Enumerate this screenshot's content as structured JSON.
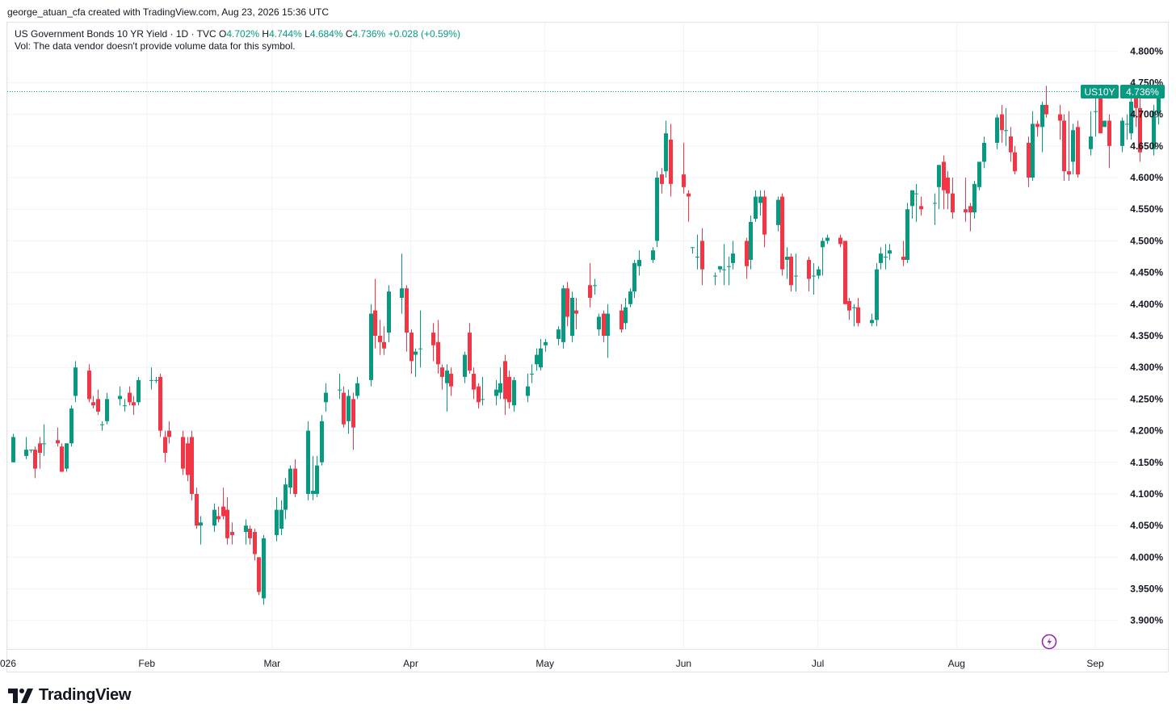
{
  "attribution": "george_atuan_cfa created with TradingView.com, Aug 23, 2026 15:36 UTC",
  "legend": {
    "symbol": "US Government Bonds 10 YR Yield · 1D · TVC",
    "o_label": "O",
    "o_value": "4.702%",
    "h_label": "H",
    "h_value": "4.744%",
    "l_label": "L",
    "l_value": "4.684%",
    "c_label": "C",
    "c_value": "4.736%",
    "change": "+0.028 (+0.59%)",
    "volume_note": "Vol: The data vendor doesn't provide volume data for this symbol."
  },
  "price_tag": {
    "symbol": "US10Y",
    "value": "4.736%"
  },
  "brand": {
    "name": "TradingView",
    "logo_icon": "tradingview-logo-icon"
  },
  "colors": {
    "up": "#089981",
    "down": "#f23645",
    "grid": "#f0f3fa",
    "axis_text": "#131722",
    "last_price": "#089981",
    "lightning": "#9c27b0"
  },
  "chart_data": {
    "type": "candlestick",
    "x_axis_labels": [
      {
        "label": "026",
        "date": "2026-01-01"
      },
      {
        "label": "Feb",
        "date": "2026-02-01"
      },
      {
        "label": "Mar",
        "date": "2026-03-01"
      },
      {
        "label": "Apr",
        "date": "2026-04-01"
      },
      {
        "label": "May",
        "date": "2026-05-01"
      },
      {
        "label": "Jun",
        "date": "2026-06-01"
      },
      {
        "label": "Jul",
        "date": "2026-07-01"
      },
      {
        "label": "Aug",
        "date": "2026-08-01"
      },
      {
        "label": "Sep",
        "date": "2026-09-01"
      }
    ],
    "y_ticks": [
      "4.800%",
      "4.750%",
      "4.700%",
      "4.650%",
      "4.600%",
      "4.550%",
      "4.500%",
      "4.450%",
      "4.400%",
      "4.350%",
      "4.300%",
      "4.250%",
      "4.200%",
      "4.150%",
      "4.100%",
      "4.050%",
      "4.000%",
      "3.950%",
      "3.900%"
    ],
    "ylim": [
      3.855,
      4.845
    ],
    "last_price": 4.736,
    "grid": true,
    "series": [
      {
        "o": 4.15,
        "h": 4.195,
        "l": 4.15,
        "c": 4.19
      },
      {
        "o": 4.16,
        "h": 4.19,
        "l": 4.155,
        "c": 4.17
      },
      {
        "o": 4.17,
        "h": 4.17,
        "l": 4.165,
        "c": 4.17
      },
      {
        "o": 4.17,
        "h": 4.175,
        "l": 4.125,
        "c": 4.14
      },
      {
        "o": 4.18,
        "h": 4.19,
        "l": 4.14,
        "c": 4.165
      },
      {
        "o": 4.18,
        "h": 4.21,
        "l": 4.16,
        "c": 4.18
      },
      {
        "o": 4.185,
        "h": 4.205,
        "l": 4.175,
        "c": 4.18
      },
      {
        "o": 4.175,
        "h": 4.18,
        "l": 4.135,
        "c": 4.135
      },
      {
        "o": 4.14,
        "h": 4.18,
        "l": 4.135,
        "c": 4.18
      },
      {
        "o": 4.18,
        "h": 4.24,
        "l": 4.175,
        "c": 4.235
      },
      {
        "o": 4.255,
        "h": 4.31,
        "l": 4.245,
        "c": 4.3
      },
      {
        "o": 4.295,
        "h": 4.305,
        "l": 4.245,
        "c": 4.25
      },
      {
        "o": 4.245,
        "h": 4.255,
        "l": 4.235,
        "c": 4.24
      },
      {
        "o": 4.25,
        "h": 4.265,
        "l": 4.225,
        "c": 4.23
      },
      {
        "o": 4.21,
        "h": 4.215,
        "l": 4.2,
        "c": 4.21
      },
      {
        "o": 4.215,
        "h": 4.26,
        "l": 4.21,
        "c": 4.25
      },
      {
        "o": 4.25,
        "h": 4.27,
        "l": 4.24,
        "c": 4.255
      },
      {
        "o": 4.24,
        "h": 4.25,
        "l": 4.23,
        "c": 4.24
      },
      {
        "o": 4.26,
        "h": 4.27,
        "l": 4.24,
        "c": 4.245
      },
      {
        "o": 4.245,
        "h": 4.255,
        "l": 4.225,
        "c": 4.24
      },
      {
        "o": 4.245,
        "h": 4.285,
        "l": 4.24,
        "c": 4.28
      },
      {
        "o": 4.28,
        "h": 4.3,
        "l": 4.265,
        "c": 4.28
      },
      {
        "o": 4.28,
        "h": 4.285,
        "l": 4.275,
        "c": 4.28
      },
      {
        "o": 4.285,
        "h": 4.29,
        "l": 4.19,
        "c": 4.2
      },
      {
        "o": 4.19,
        "h": 4.2,
        "l": 4.15,
        "c": 4.165
      },
      {
        "o": 4.2,
        "h": 4.215,
        "l": 4.18,
        "c": 4.19
      },
      {
        "o": 4.19,
        "h": 4.2,
        "l": 4.13,
        "c": 4.14
      },
      {
        "o": 4.18,
        "h": 4.19,
        "l": 4.12,
        "c": 4.13
      },
      {
        "o": 4.19,
        "h": 4.2,
        "l": 4.09,
        "c": 4.1
      },
      {
        "o": 4.1,
        "h": 4.11,
        "l": 4.045,
        "c": 4.05
      },
      {
        "o": 4.05,
        "h": 4.065,
        "l": 4.02,
        "c": 4.055
      },
      {
        "o": 4.05,
        "h": 4.085,
        "l": 4.04,
        "c": 4.075
      },
      {
        "o": 4.065,
        "h": 4.08,
        "l": 4.055,
        "c": 4.06
      },
      {
        "o": 4.08,
        "h": 4.11,
        "l": 4.06,
        "c": 4.065
      },
      {
        "o": 4.075,
        "h": 4.095,
        "l": 4.02,
        "c": 4.03
      },
      {
        "o": 4.04,
        "h": 4.055,
        "l": 4.02,
        "c": 4.035
      },
      {
        "o": 4.04,
        "h": 4.06,
        "l": 4.02,
        "c": 4.05
      },
      {
        "o": 4.045,
        "h": 4.05,
        "l": 4.02,
        "c": 4.03
      },
      {
        "o": 4.04,
        "h": 4.045,
        "l": 3.995,
        "c": 4.005
      },
      {
        "o": 4.0,
        "h": 4.0,
        "l": 3.94,
        "c": 3.945
      },
      {
        "o": 3.935,
        "h": 4.035,
        "l": 3.925,
        "c": 4.03
      },
      {
        "o": 4.035,
        "h": 4.095,
        "l": 4.025,
        "c": 4.075
      },
      {
        "o": 4.045,
        "h": 4.09,
        "l": 4.035,
        "c": 4.075
      },
      {
        "o": 4.075,
        "h": 4.125,
        "l": 4.06,
        "c": 4.115
      },
      {
        "o": 4.11,
        "h": 4.145,
        "l": 4.1,
        "c": 4.14
      },
      {
        "o": 4.14,
        "h": 4.155,
        "l": 4.095,
        "c": 4.1
      },
      {
        "o": 4.1,
        "h": 4.215,
        "l": 4.09,
        "c": 4.2
      },
      {
        "o": 4.1,
        "h": 4.16,
        "l": 4.09,
        "c": 4.105
      },
      {
        "o": 4.1,
        "h": 4.16,
        "l": 4.095,
        "c": 4.145
      },
      {
        "o": 4.15,
        "h": 4.225,
        "l": 4.145,
        "c": 4.215
      },
      {
        "o": 4.245,
        "h": 4.275,
        "l": 4.23,
        "c": 4.26
      },
      {
        "o": 4.265,
        "h": 4.29,
        "l": 4.25,
        "c": 4.265
      },
      {
        "o": 4.26,
        "h": 4.27,
        "l": 4.205,
        "c": 4.21
      },
      {
        "o": 4.215,
        "h": 4.265,
        "l": 4.195,
        "c": 4.255
      },
      {
        "o": 4.25,
        "h": 4.26,
        "l": 4.17,
        "c": 4.205
      },
      {
        "o": 4.255,
        "h": 4.285,
        "l": 4.25,
        "c": 4.275
      },
      {
        "o": 4.28,
        "h": 4.4,
        "l": 4.27,
        "c": 4.385
      },
      {
        "o": 4.39,
        "h": 4.44,
        "l": 4.33,
        "c": 4.35
      },
      {
        "o": 4.35,
        "h": 4.375,
        "l": 4.32,
        "c": 4.34
      },
      {
        "o": 4.34,
        "h": 4.365,
        "l": 4.32,
        "c": 4.33
      },
      {
        "o": 4.355,
        "h": 4.43,
        "l": 4.34,
        "c": 4.42
      },
      {
        "o": 4.41,
        "h": 4.48,
        "l": 4.385,
        "c": 4.425
      },
      {
        "o": 4.425,
        "h": 4.43,
        "l": 4.325,
        "c": 4.355
      },
      {
        "o": 4.355,
        "h": 4.36,
        "l": 4.29,
        "c": 4.31
      },
      {
        "o": 4.32,
        "h": 4.33,
        "l": 4.285,
        "c": 4.325
      },
      {
        "o": 4.33,
        "h": 4.39,
        "l": 4.3,
        "c": 4.33
      },
      {
        "o": 4.355,
        "h": 4.37,
        "l": 4.31,
        "c": 4.335
      },
      {
        "o": 4.34,
        "h": 4.375,
        "l": 4.29,
        "c": 4.305
      },
      {
        "o": 4.3,
        "h": 4.305,
        "l": 4.265,
        "c": 4.285
      },
      {
        "o": 4.275,
        "h": 4.305,
        "l": 4.23,
        "c": 4.295
      },
      {
        "o": 4.29,
        "h": 4.3,
        "l": 4.255,
        "c": 4.27
      },
      {
        "o": 4.285,
        "h": 4.325,
        "l": 4.275,
        "c": 4.32
      },
      {
        "o": 4.355,
        "h": 4.37,
        "l": 4.29,
        "c": 4.295
      },
      {
        "o": 4.29,
        "h": 4.3,
        "l": 4.25,
        "c": 4.265
      },
      {
        "o": 4.27,
        "h": 4.275,
        "l": 4.235,
        "c": 4.245
      },
      {
        "o": 4.25,
        "h": 4.285,
        "l": 4.24,
        "c": 4.25
      },
      {
        "o": 4.255,
        "h": 4.28,
        "l": 4.24,
        "c": 4.265
      },
      {
        "o": 4.26,
        "h": 4.3,
        "l": 4.25,
        "c": 4.275
      },
      {
        "o": 4.31,
        "h": 4.32,
        "l": 4.225,
        "c": 4.25
      },
      {
        "o": 4.285,
        "h": 4.295,
        "l": 4.235,
        "c": 4.245
      },
      {
        "o": 4.24,
        "h": 4.285,
        "l": 4.23,
        "c": 4.28
      },
      {
        "o": 4.255,
        "h": 4.29,
        "l": 4.245,
        "c": 4.27
      },
      {
        "o": 4.29,
        "h": 4.305,
        "l": 4.275,
        "c": 4.29
      },
      {
        "o": 4.305,
        "h": 4.33,
        "l": 4.295,
        "c": 4.32
      },
      {
        "o": 4.3,
        "h": 4.345,
        "l": 4.295,
        "c": 4.33
      },
      {
        "o": 4.335,
        "h": 4.345,
        "l": 4.325,
        "c": 4.34
      },
      {
        "o": 4.345,
        "h": 4.365,
        "l": 4.335,
        "c": 4.36
      },
      {
        "o": 4.34,
        "h": 4.43,
        "l": 4.33,
        "c": 4.425
      },
      {
        "o": 4.425,
        "h": 4.435,
        "l": 4.365,
        "c": 4.38
      },
      {
        "o": 4.35,
        "h": 4.42,
        "l": 4.34,
        "c": 4.41
      },
      {
        "o": 4.39,
        "h": 4.41,
        "l": 4.36,
        "c": 4.385
      },
      {
        "o": 4.43,
        "h": 4.465,
        "l": 4.395,
        "c": 4.41
      },
      {
        "o": 4.43,
        "h": 4.44,
        "l": 4.415,
        "c": 4.43
      },
      {
        "o": 4.36,
        "h": 4.385,
        "l": 4.35,
        "c": 4.38
      },
      {
        "o": 4.385,
        "h": 4.39,
        "l": 4.34,
        "c": 4.35
      },
      {
        "o": 4.35,
        "h": 4.4,
        "l": 4.315,
        "c": 4.385
      },
      {
        "o": 4.39,
        "h": 4.4,
        "l": 4.355,
        "c": 4.36
      },
      {
        "o": 4.37,
        "h": 4.41,
        "l": 4.36,
        "c": 4.395
      },
      {
        "o": 4.4,
        "h": 4.425,
        "l": 4.395,
        "c": 4.42
      },
      {
        "o": 4.42,
        "h": 4.47,
        "l": 4.41,
        "c": 4.465
      },
      {
        "o": 4.46,
        "h": 4.485,
        "l": 4.445,
        "c": 4.47
      },
      {
        "o": 4.47,
        "h": 4.49,
        "l": 4.465,
        "c": 4.485
      },
      {
        "o": 4.5,
        "h": 4.61,
        "l": 4.49,
        "c": 4.6
      },
      {
        "o": 4.605,
        "h": 4.615,
        "l": 4.575,
        "c": 4.59
      },
      {
        "o": 4.61,
        "h": 4.69,
        "l": 4.6,
        "c": 4.67
      },
      {
        "o": 4.66,
        "h": 4.685,
        "l": 4.57,
        "c": 4.59
      },
      {
        "o": 4.605,
        "h": 4.655,
        "l": 4.575,
        "c": 4.585
      },
      {
        "o": 4.575,
        "h": 4.58,
        "l": 4.53,
        "c": 4.57
      },
      {
        "o": 4.49,
        "h": 4.49,
        "l": 4.48,
        "c": 4.49
      },
      {
        "o": 4.475,
        "h": 4.51,
        "l": 4.455,
        "c": 4.475
      },
      {
        "o": 4.5,
        "h": 4.52,
        "l": 4.43,
        "c": 4.455
      },
      {
        "o": 4.445,
        "h": 4.45,
        "l": 4.43,
        "c": 4.445
      },
      {
        "o": 4.455,
        "h": 4.46,
        "l": 4.45,
        "c": 4.46
      },
      {
        "o": 4.455,
        "h": 4.495,
        "l": 4.43,
        "c": 4.455
      },
      {
        "o": 4.46,
        "h": 4.475,
        "l": 4.43,
        "c": 4.46
      },
      {
        "o": 4.465,
        "h": 4.5,
        "l": 4.455,
        "c": 4.48
      },
      {
        "o": 4.5,
        "h": 4.505,
        "l": 4.44,
        "c": 4.46
      },
      {
        "o": 4.47,
        "h": 4.54,
        "l": 4.455,
        "c": 4.53
      },
      {
        "o": 4.535,
        "h": 4.58,
        "l": 4.53,
        "c": 4.57
      },
      {
        "o": 4.56,
        "h": 4.58,
        "l": 4.54,
        "c": 4.57
      },
      {
        "o": 4.57,
        "h": 4.58,
        "l": 4.49,
        "c": 4.51
      },
      {
        "o": 4.525,
        "h": 4.57,
        "l": 4.515,
        "c": 4.565
      },
      {
        "o": 4.57,
        "h": 4.575,
        "l": 4.445,
        "c": 4.455
      },
      {
        "o": 4.47,
        "h": 4.49,
        "l": 4.44,
        "c": 4.475
      },
      {
        "o": 4.475,
        "h": 4.48,
        "l": 4.42,
        "c": 4.43
      },
      {
        "o": 4.445,
        "h": 4.48,
        "l": 4.42,
        "c": 4.445
      },
      {
        "o": 4.47,
        "h": 4.475,
        "l": 4.42,
        "c": 4.44
      },
      {
        "o": 4.445,
        "h": 4.465,
        "l": 4.415,
        "c": 4.445
      },
      {
        "o": 4.445,
        "h": 4.46,
        "l": 4.44,
        "c": 4.455
      },
      {
        "o": 4.49,
        "h": 4.505,
        "l": 4.445,
        "c": 4.5
      },
      {
        "o": 4.5,
        "h": 4.51,
        "l": 4.495,
        "c": 4.505
      },
      {
        "o": 4.505,
        "h": 4.51,
        "l": 4.49,
        "c": 4.495
      },
      {
        "o": 4.5,
        "h": 4.5,
        "l": 4.4,
        "c": 4.4
      },
      {
        "o": 4.405,
        "h": 4.41,
        "l": 4.375,
        "c": 4.39
      },
      {
        "o": 4.395,
        "h": 4.4,
        "l": 4.365,
        "c": 4.395
      },
      {
        "o": 4.395,
        "h": 4.41,
        "l": 4.365,
        "c": 4.37
      },
      {
        "o": 4.37,
        "h": 4.385,
        "l": 4.365,
        "c": 4.375
      },
      {
        "o": 4.375,
        "h": 4.465,
        "l": 4.365,
        "c": 4.455
      },
      {
        "o": 4.465,
        "h": 4.49,
        "l": 4.455,
        "c": 4.48
      },
      {
        "o": 4.475,
        "h": 4.495,
        "l": 4.455,
        "c": 4.475
      },
      {
        "o": 4.48,
        "h": 4.495,
        "l": 4.47,
        "c": 4.485
      },
      {
        "o": 4.475,
        "h": 4.5,
        "l": 4.46,
        "c": 4.47
      },
      {
        "o": 4.47,
        "h": 4.56,
        "l": 4.465,
        "c": 4.55
      },
      {
        "o": 4.555,
        "h": 4.58,
        "l": 4.535,
        "c": 4.58
      },
      {
        "o": 4.575,
        "h": 4.59,
        "l": 4.53,
        "c": 4.575
      },
      {
        "o": 4.555,
        "h": 4.57,
        "l": 4.54,
        "c": 4.55
      },
      {
        "o": 4.56,
        "h": 4.575,
        "l": 4.525,
        "c": 4.56
      },
      {
        "o": 4.585,
        "h": 4.62,
        "l": 4.55,
        "c": 4.62
      },
      {
        "o": 4.625,
        "h": 4.635,
        "l": 4.55,
        "c": 4.58
      },
      {
        "o": 4.6,
        "h": 4.61,
        "l": 4.55,
        "c": 4.575
      },
      {
        "o": 4.575,
        "h": 4.6,
        "l": 4.535,
        "c": 4.545
      },
      {
        "o": 4.55,
        "h": 4.6,
        "l": 4.53,
        "c": 4.545
      },
      {
        "o": 4.555,
        "h": 4.56,
        "l": 4.515,
        "c": 4.545
      },
      {
        "o": 4.545,
        "h": 4.595,
        "l": 4.535,
        "c": 4.59
      },
      {
        "o": 4.585,
        "h": 4.625,
        "l": 4.58,
        "c": 4.625
      },
      {
        "o": 4.625,
        "h": 4.665,
        "l": 4.615,
        "c": 4.655
      },
      {
        "o": 4.655,
        "h": 4.7,
        "l": 4.645,
        "c": 4.695
      },
      {
        "o": 4.7,
        "h": 4.715,
        "l": 4.655,
        "c": 4.675
      },
      {
        "o": 4.675,
        "h": 4.71,
        "l": 4.65,
        "c": 4.675
      },
      {
        "o": 4.665,
        "h": 4.68,
        "l": 4.625,
        "c": 4.64
      },
      {
        "o": 4.64,
        "h": 4.65,
        "l": 4.605,
        "c": 4.61
      },
      {
        "o": 4.655,
        "h": 4.665,
        "l": 4.585,
        "c": 4.6
      },
      {
        "o": 4.6,
        "h": 4.705,
        "l": 4.595,
        "c": 4.685
      },
      {
        "o": 4.685,
        "h": 4.69,
        "l": 4.665,
        "c": 4.68
      },
      {
        "o": 4.68,
        "h": 4.72,
        "l": 4.64,
        "c": 4.715
      },
      {
        "o": 4.715,
        "h": 4.745,
        "l": 4.695,
        "c": 4.7
      },
      {
        "o": 4.7,
        "h": 4.715,
        "l": 4.66,
        "c": 4.69
      },
      {
        "o": 4.69,
        "h": 4.7,
        "l": 4.595,
        "c": 4.61
      },
      {
        "o": 4.61,
        "h": 4.705,
        "l": 4.595,
        "c": 4.605
      },
      {
        "o": 4.625,
        "h": 4.685,
        "l": 4.605,
        "c": 4.675
      },
      {
        "o": 4.68,
        "h": 4.69,
        "l": 4.6,
        "c": 4.605
      },
      {
        "o": 4.645,
        "h": 4.705,
        "l": 4.635,
        "c": 4.665
      },
      {
        "o": 4.705,
        "h": 4.73,
        "l": 4.665,
        "c": 4.705
      },
      {
        "o": 4.725,
        "h": 4.735,
        "l": 4.67,
        "c": 4.67
      },
      {
        "o": 4.68,
        "h": 4.69,
        "l": 4.68,
        "c": 4.69
      },
      {
        "o": 4.69,
        "h": 4.7,
        "l": 4.615,
        "c": 4.65
      },
      {
        "o": 4.65,
        "h": 4.695,
        "l": 4.64,
        "c": 4.69
      },
      {
        "o": 4.685,
        "h": 4.7,
        "l": 4.66,
        "c": 4.685
      },
      {
        "o": 4.67,
        "h": 4.725,
        "l": 4.66,
        "c": 4.72
      },
      {
        "o": 4.725,
        "h": 4.745,
        "l": 4.68,
        "c": 4.71
      },
      {
        "o": 4.71,
        "h": 4.725,
        "l": 4.625,
        "c": 4.64
      },
      {
        "o": 4.645,
        "h": 4.715,
        "l": 4.635,
        "c": 4.705
      },
      {
        "o": 4.702,
        "h": 4.744,
        "l": 4.684,
        "c": 4.736
      }
    ]
  }
}
